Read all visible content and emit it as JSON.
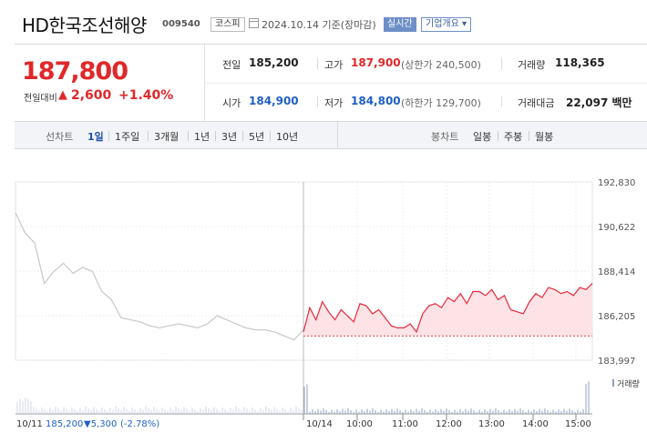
{
  "header": {
    "company": "HD한국조선해양",
    "code": "009540",
    "market": "코스피",
    "date": "2024.10.14 기준(장마감)",
    "realtime_btn": "실시간",
    "overview_btn": "기업개요 ▾"
  },
  "summary": {
    "price": "187,800",
    "change_label": "전일대비",
    "change_arrow": "▲",
    "change": "2,600",
    "change_pct": "+1.40%",
    "prev_label": "전일",
    "prev_value": "185,200",
    "high_label": "고가",
    "high_value": "187,900",
    "upper_limit": "(상한가 240,500)",
    "volume_label": "거래량",
    "volume_value": "118,365",
    "open_label": "시가",
    "open_value": "184,900",
    "low_label": "저가",
    "low_value": "184,800",
    "lower_limit": "(하한가 129,700)",
    "amount_label": "거래대금",
    "amount_value": "22,097 백만"
  },
  "tabs": {
    "line_label": "선차트",
    "line_items": [
      "1일",
      "1주일",
      "3개월",
      "1년",
      "3년",
      "5년",
      "10년"
    ],
    "active": "1일",
    "candle_label": "봉차트",
    "candle_items": [
      "일봉",
      "주봉",
      "월봉"
    ]
  },
  "chart_data": {
    "type": "line",
    "y_ticks": [
      "192,830",
      "190,622",
      "188,414",
      "186,205",
      "183,997"
    ],
    "ylim": [
      183997,
      192830
    ],
    "x_ticks": [
      "10/14",
      "10:00",
      "11:00",
      "12:00",
      "13:00",
      "14:00",
      "15:00"
    ],
    "prev_day": {
      "label": "10/11",
      "close": "185,200",
      "change": "▼5,300",
      "change_pct": "(-2.78%)",
      "x": [
        0,
        1,
        2,
        3,
        4,
        5,
        6,
        7,
        8,
        9,
        10,
        11,
        12,
        13,
        14,
        15,
        16,
        17,
        18,
        19,
        20,
        21,
        22,
        23,
        24,
        25,
        26,
        27,
        28,
        29,
        30
      ],
      "values": [
        191300,
        190300,
        189800,
        187800,
        188400,
        188800,
        188300,
        188600,
        188400,
        187400,
        187000,
        186100,
        186000,
        185900,
        185700,
        185600,
        185700,
        185800,
        185700,
        185600,
        185800,
        186200,
        186000,
        185800,
        185600,
        185500,
        185500,
        185400,
        185200,
        185000,
        185500
      ]
    },
    "today": {
      "x": [
        0,
        1,
        2,
        3,
        4,
        5,
        6,
        7,
        8,
        9,
        10,
        11,
        12,
        13,
        14,
        15,
        16,
        17,
        18,
        19,
        20,
        21,
        22,
        23,
        24,
        25,
        26,
        27,
        28,
        29,
        30,
        31,
        32,
        33,
        34,
        35,
        36,
        37,
        38,
        39,
        40,
        41,
        42,
        43,
        44,
        45,
        46
      ],
      "values": [
        185400,
        186600,
        186000,
        186900,
        186400,
        186000,
        186500,
        186200,
        185900,
        186800,
        186700,
        186300,
        186500,
        186100,
        185700,
        185600,
        185600,
        185800,
        185400,
        186300,
        186700,
        186800,
        186600,
        187100,
        186900,
        187300,
        186800,
        187400,
        187400,
        187200,
        187500,
        187000,
        187200,
        186500,
        186400,
        186300,
        186900,
        187300,
        187100,
        187600,
        187500,
        187300,
        187400,
        187200,
        187600,
        187500,
        187800
      ],
      "baseline": 185200
    },
    "volume_label": "거래량"
  }
}
